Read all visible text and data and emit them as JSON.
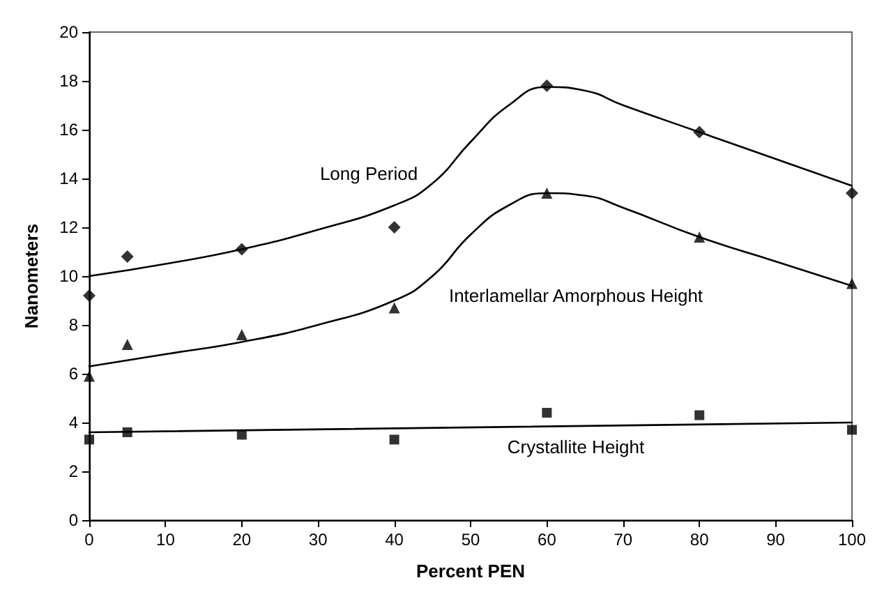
{
  "chart_data": {
    "type": "scatter",
    "xlabel": "Percent PEN",
    "ylabel": "Nanometers",
    "xlim": [
      0,
      100
    ],
    "ylim": [
      0,
      20
    ],
    "xticks": [
      0,
      10,
      20,
      30,
      40,
      50,
      60,
      70,
      80,
      90,
      100
    ],
    "yticks": [
      0,
      2,
      4,
      6,
      8,
      10,
      12,
      14,
      16,
      18,
      20
    ],
    "grid": false,
    "x": [
      0,
      5,
      20,
      40,
      60,
      80,
      100
    ],
    "series": [
      {
        "marker": "diamond",
        "color": "#000000",
        "values": [
          9.2,
          10.8,
          11.1,
          12.0,
          17.8,
          15.9,
          13.4
        ]
      },
      {
        "marker": "triangle",
        "color": "#000000",
        "values": [
          5.9,
          7.2,
          7.6,
          8.7,
          13.4,
          11.6,
          9.7
        ]
      },
      {
        "marker": "square",
        "color": "#000000",
        "values": [
          3.3,
          3.6,
          3.5,
          3.3,
          4.4,
          4.3,
          3.7
        ]
      },
      {
        "type": "line",
        "marker": "none",
        "line_style": "solid",
        "color": "#000000",
        "x": [
          0,
          10,
          20,
          30,
          40,
          45,
          50,
          55,
          60,
          65,
          70,
          80,
          90,
          100
        ],
        "values": [
          10.0,
          10.5,
          11.1,
          11.9,
          12.9,
          13.8,
          15.5,
          17.0,
          17.75,
          17.6,
          17.0,
          15.9,
          14.8,
          13.7
        ]
      },
      {
        "type": "line",
        "marker": "none",
        "line_style": "solid",
        "color": "#000000",
        "x": [
          0,
          10,
          20,
          30,
          40,
          45,
          50,
          55,
          60,
          65,
          70,
          80,
          90,
          100
        ],
        "values": [
          6.3,
          6.8,
          7.3,
          8.0,
          9.0,
          10.0,
          11.7,
          12.9,
          13.4,
          13.3,
          12.8,
          11.6,
          10.6,
          9.6
        ]
      },
      {
        "type": "line",
        "marker": "none",
        "line_style": "solid",
        "color": "#000000",
        "x": [
          0,
          100
        ],
        "values": [
          3.6,
          4.0
        ]
      }
    ],
    "annotations": [
      "Long Period",
      "Interlamellar Amorphous Height",
      "Crystallite Height"
    ]
  }
}
